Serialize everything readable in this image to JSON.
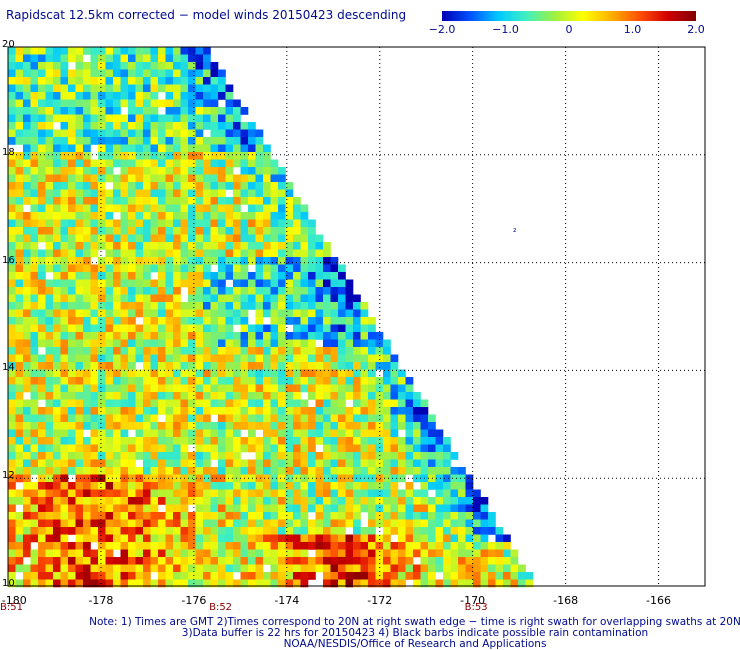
{
  "title": "Rapidscat 12.5km corrected − model winds 20150423 descending",
  "colorbar": {
    "min": -2.0,
    "max": 2.0,
    "ticks": [
      "−2.0",
      "−1.0",
      "0",
      "1.0",
      "2.0"
    ],
    "tick_values": [
      -2.0,
      -1.0,
      0,
      1.0,
      2.0
    ],
    "colors": [
      "#0000b4",
      "#0050ff",
      "#00c8ff",
      "#40f0c0",
      "#a0f040",
      "#ffff00",
      "#ffb000",
      "#ff5000",
      "#d00000",
      "#800000"
    ]
  },
  "map": {
    "lon_range": [
      -180,
      -165
    ],
    "lat_range": [
      10,
      20
    ],
    "lon_labels": [
      "-180",
      "-178",
      "-176",
      "-174",
      "-172",
      "-170",
      "-168",
      "-166"
    ],
    "lon_values": [
      -180,
      -178,
      -176,
      -174,
      -172,
      -170,
      -168,
      -166
    ],
    "lat_labels": [
      "20",
      "18",
      "16",
      "14",
      "12",
      "10"
    ],
    "lat_values": [
      20,
      18,
      16,
      14,
      12,
      10
    ],
    "grid": true,
    "land_label": "₂",
    "swath_times": [
      "B:51",
      "B:52",
      "B:53"
    ],
    "swath_time_lons": [
      -180,
      -175.5,
      -170
    ]
  },
  "notes": [
    "Note: 1) Times are GMT 2)Times correspond to 20N at right swath edge − time is right swath for overlapping swaths at 20N",
    "3)Data buffer is 22 hrs for 20150423 4) Black barbs indicate possible rain contamination",
    "NOAA/NESDIS/Office of Research and Applications"
  ]
}
